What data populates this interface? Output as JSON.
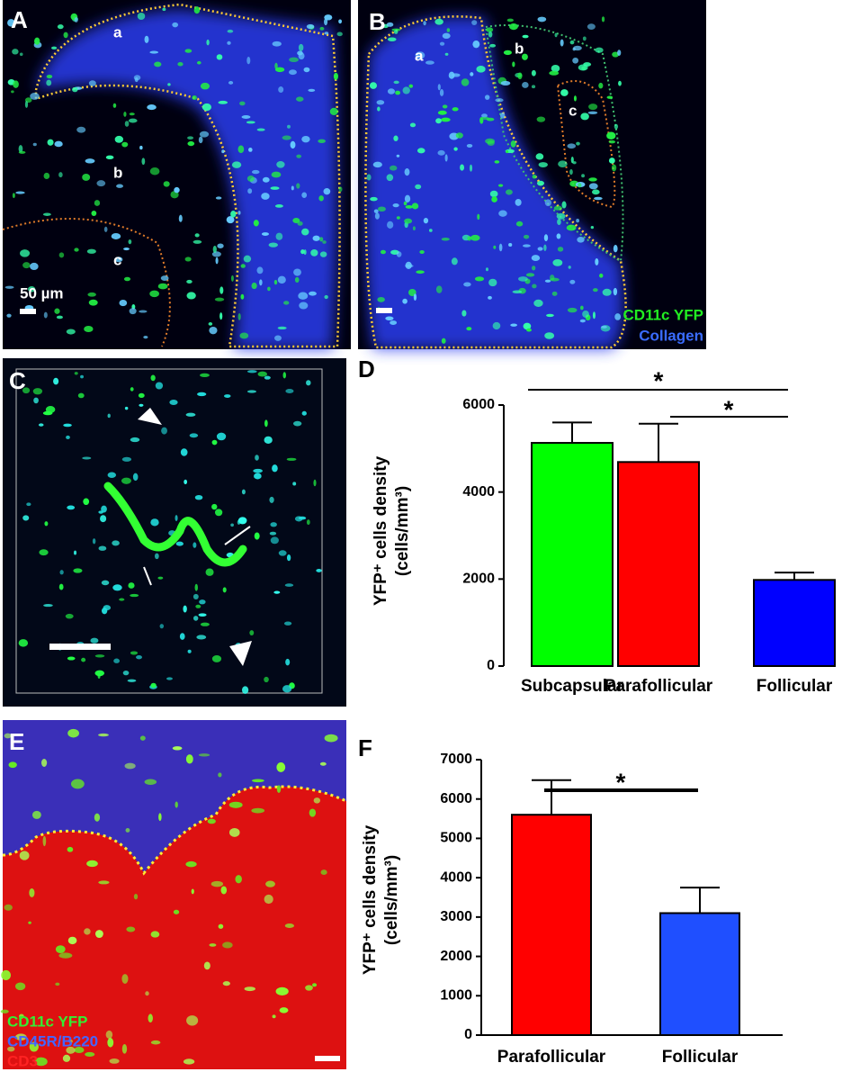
{
  "panels": {
    "A": {
      "letter": "A",
      "regions": [
        "a",
        "b",
        "c"
      ],
      "scale": "50 µm"
    },
    "B": {
      "letter": "B",
      "regions": [
        "a",
        "b",
        "c"
      ],
      "legend": [
        "CD11c YFP",
        "Collagen"
      ]
    },
    "C": {
      "letter": "C"
    },
    "D": {
      "letter": "D"
    },
    "E": {
      "letter": "E",
      "legend": [
        "CD11c YFP",
        "CD45R/B220",
        "CD3"
      ]
    },
    "F": {
      "letter": "F"
    }
  },
  "chart_data": [
    {
      "type": "bar",
      "ylabel": [
        "YFP⁺ cells density",
        "(cells/mm³)"
      ],
      "categories": [
        "Subcapsular",
        "Parafollicular",
        "Follicular"
      ],
      "values": [
        5130,
        4690,
        1980
      ],
      "errors": [
        470,
        880,
        170
      ],
      "colors": [
        "#00ff00",
        "#ff0000",
        "#0000ff"
      ],
      "ylim": [
        0,
        6000
      ],
      "yticks": [
        0,
        2000,
        4000,
        6000
      ],
      "annotations": [
        "*",
        "*"
      ]
    },
    {
      "type": "bar",
      "ylabel": [
        "YFP⁺ cells density",
        "(cells/mm³)"
      ],
      "categories": [
        "Parafollicular",
        "Follicular"
      ],
      "values": [
        5600,
        3100
      ],
      "errors": [
        880,
        650
      ],
      "colors": [
        "#ff0000",
        "#1f4fff"
      ],
      "ylim": [
        0,
        7000
      ],
      "yticks": [
        0,
        1000,
        2000,
        3000,
        4000,
        5000,
        6000,
        7000
      ],
      "annotations": [
        "*"
      ]
    }
  ]
}
